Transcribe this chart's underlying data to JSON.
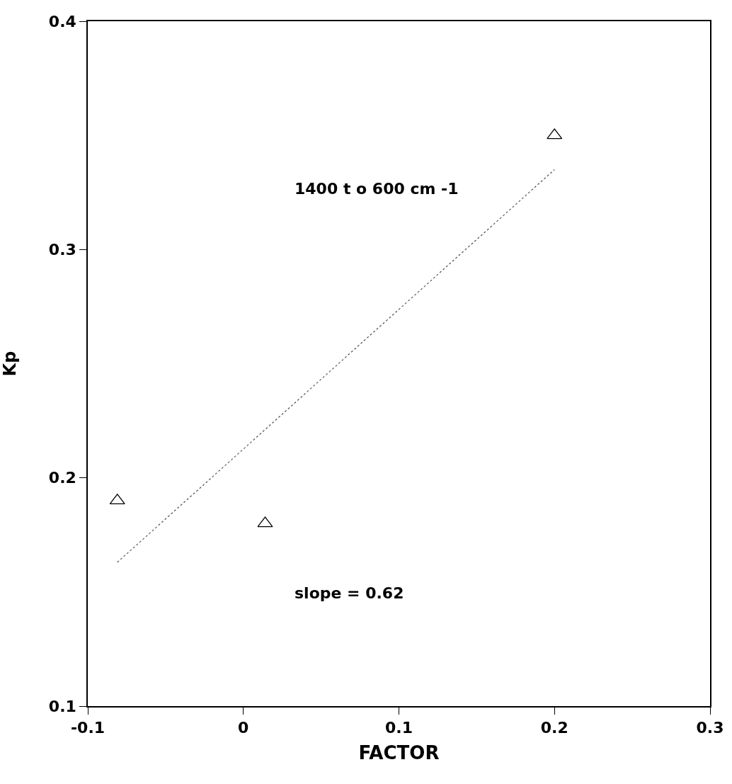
{
  "chart_data": {
    "type": "scatter",
    "xlabel": "FACTOR",
    "ylabel": "Kp",
    "xlim": [
      -0.1,
      0.3
    ],
    "xticks": [
      -0.1,
      0,
      0.1,
      0.2,
      0.3
    ],
    "ylim": [
      0.1,
      0.4
    ],
    "yticks": [
      0.1,
      0.2,
      0.3,
      0.4
    ],
    "series": [
      {
        "color": "#000000",
        "marker": "triangle",
        "x": [
          -0.081,
          0.014,
          0.2
        ],
        "values": [
          0.19,
          0.18,
          0.35
        ]
      },
      {
        "type": "line",
        "color": "#555555",
        "line_style": "dotted",
        "marker": "none",
        "x": [
          -0.081,
          0.2
        ],
        "values": [
          0.163,
          0.335
        ]
      }
    ],
    "annotations": [
      "1400 t o 600 cm -1",
      "slope = 0.62"
    ]
  }
}
